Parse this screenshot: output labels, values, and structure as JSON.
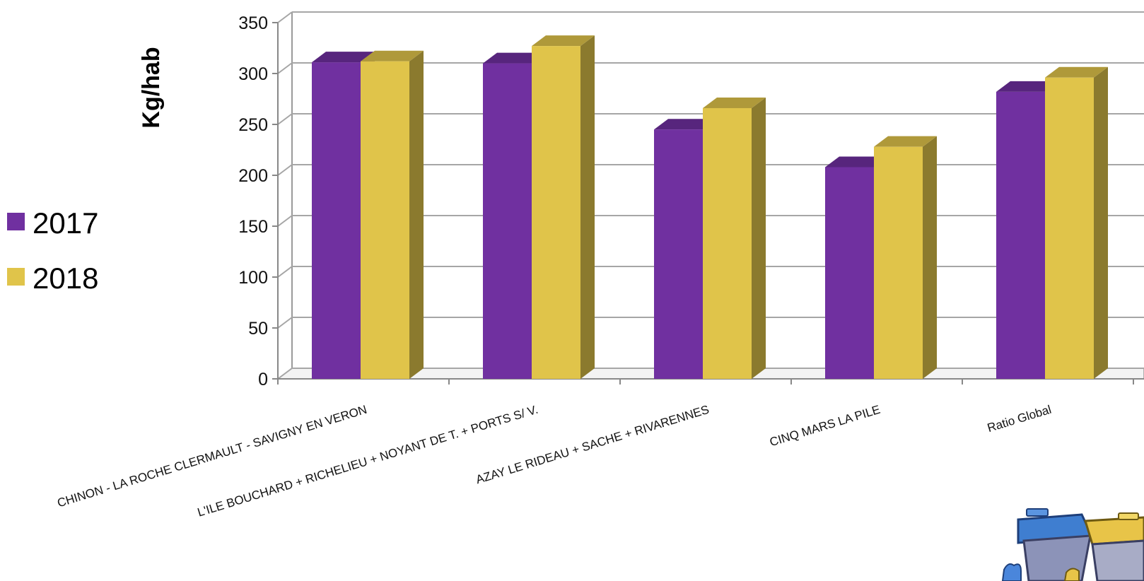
{
  "chart_data": {
    "type": "bar",
    "style": "3d-clustered-column",
    "categories": [
      "CHINON - LA ROCHE CLERMAULT - SAVIGNY EN VERON",
      "L'ILE BOUCHARD + RICHELIEU + NOYANT DE T. + PORTS S/ V.",
      "AZAY LE RIDEAU + SACHE + RIVARENNES",
      "CINQ MARS LA PILE",
      "Ratio Global"
    ],
    "series": [
      {
        "name": "2017",
        "values": [
          311,
          310,
          245,
          208,
          282
        ],
        "color": "#7030A0"
      },
      {
        "name": "2018",
        "values": [
          312,
          327,
          266,
          228,
          296
        ],
        "color": "#E0C44A"
      }
    ],
    "ylabel": "Kg/hab",
    "xlabel": "",
    "ylim": [
      0,
      350
    ],
    "yticks": [
      "0",
      "50",
      "100",
      "150",
      "200",
      "250",
      "300",
      "350"
    ],
    "grid": true,
    "legend": {
      "position": "left",
      "entries": [
        "2017",
        "2018"
      ]
    }
  },
  "decoration": {
    "corner_image": "recycling-bins-illustration"
  }
}
